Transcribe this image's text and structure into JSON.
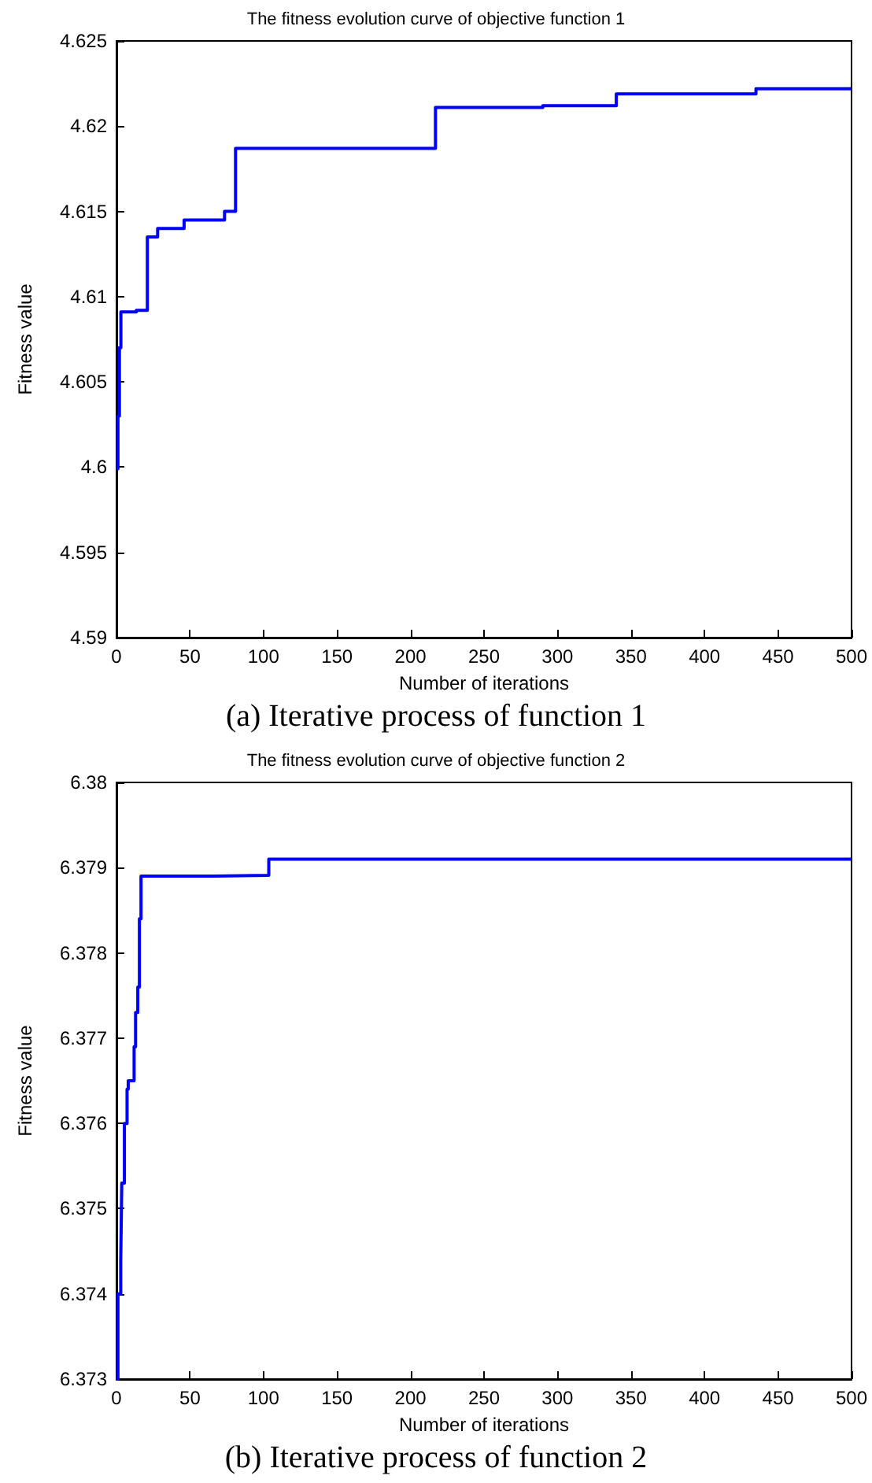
{
  "chart_data": [
    {
      "type": "step",
      "title": "The fitness evolution curve of objective function 1",
      "xlabel": "Number of iterations",
      "ylabel": "Fitness value",
      "annotations": [
        "(a) Iterative process of function 1"
      ],
      "series": [
        {
          "color": "#0000ff",
          "x": [
            0,
            1,
            2,
            3,
            13.5,
            21,
            28,
            46,
            73.5,
            81,
            217,
            290,
            340,
            435,
            500
          ],
          "values": [
            4.5999,
            4.603,
            4.607,
            4.6091,
            4.6092,
            4.6135,
            4.614,
            4.6145,
            4.615,
            4.6187,
            4.6211,
            4.6212,
            4.6219,
            4.6222,
            4.6222
          ]
        }
      ],
      "xlim": [
        0,
        500
      ],
      "xticks": [
        0,
        50,
        100,
        150,
        200,
        250,
        300,
        350,
        400,
        450,
        500
      ],
      "ylim": [
        4.59,
        4.625
      ],
      "yticks": [
        4.59,
        4.595,
        4.6,
        4.605,
        4.61,
        4.615,
        4.62,
        4.625
      ],
      "grid": false,
      "line_style": "solid",
      "marker": "none"
    },
    {
      "type": "step",
      "title": "The fitness evolution curve of objective function 2",
      "xlabel": "Number of iterations",
      "ylabel": "Fitness value",
      "annotations": [
        "(b) Iterative process of function 2"
      ],
      "series": [
        {
          "color": "#0000ff",
          "x": [
            0,
            1,
            2.9,
            3.6,
            5.4,
            7.2,
            8,
            12,
            13,
            14.5,
            15.6,
            16.7,
            66.3,
            103.6,
            500
          ],
          "values": [
            6.373,
            6.374,
            6.3744,
            6.3753,
            6.376,
            6.3764,
            6.3765,
            6.3769,
            6.3773,
            6.3776,
            6.3784,
            6.3789,
            6.37891,
            6.3791,
            6.3791
          ]
        }
      ],
      "xlim": [
        0,
        500
      ],
      "xticks": [
        0,
        50,
        100,
        150,
        200,
        250,
        300,
        350,
        400,
        450,
        500
      ],
      "ylim": [
        6.373,
        6.38
      ],
      "yticks": [
        6.373,
        6.374,
        6.375,
        6.376,
        6.377,
        6.378,
        6.379,
        6.38
      ],
      "grid": false,
      "line_style": "solid",
      "marker": "none"
    }
  ]
}
